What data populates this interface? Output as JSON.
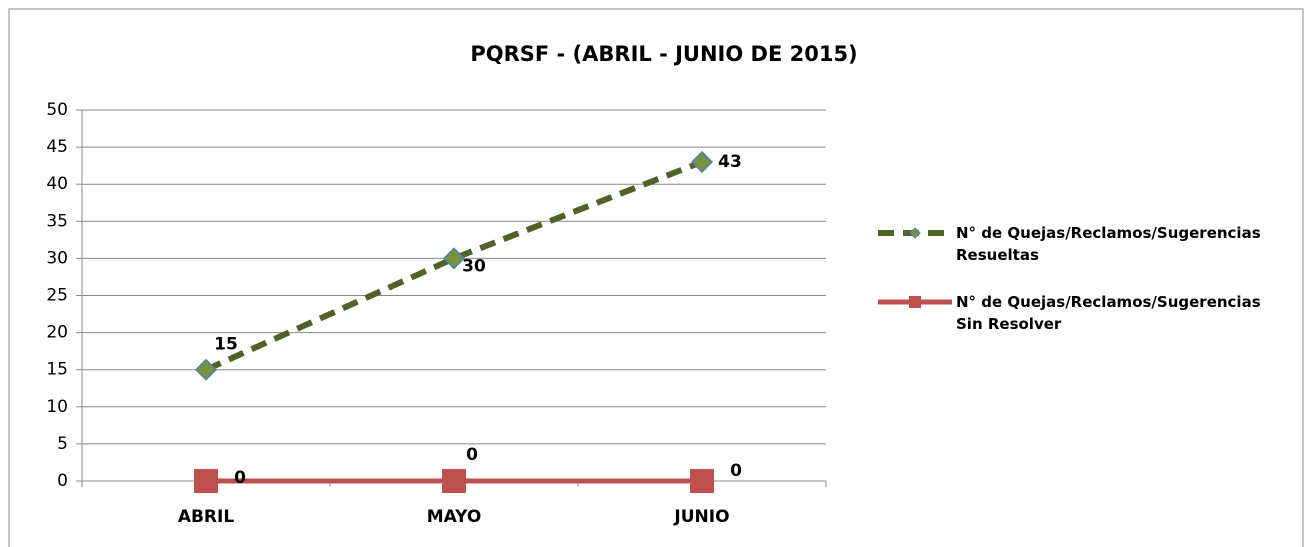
{
  "chart_data": {
    "type": "line",
    "title": "PQRSF  - (ABRIL - JUNIO DE 2015)",
    "categories": [
      "ABRIL",
      "MAYO",
      "JUNIO"
    ],
    "series": [
      {
        "name": "N° de Quejas/Reclamos/Sugerencias Resueltas",
        "color": "#4f6228",
        "marker_color": "#77933c",
        "values": [
          15,
          30,
          43
        ]
      },
      {
        "name": "N° de Quejas/Reclamos/Sugerencias Sin Resolver",
        "color": "#c0504d",
        "marker_color": "#c0504d",
        "values": [
          0,
          0,
          0
        ]
      }
    ],
    "ylim": [
      0,
      50
    ],
    "yticks": [
      0,
      5,
      10,
      15,
      20,
      25,
      30,
      35,
      40,
      45,
      50
    ],
    "grid": true,
    "legend": "right"
  }
}
